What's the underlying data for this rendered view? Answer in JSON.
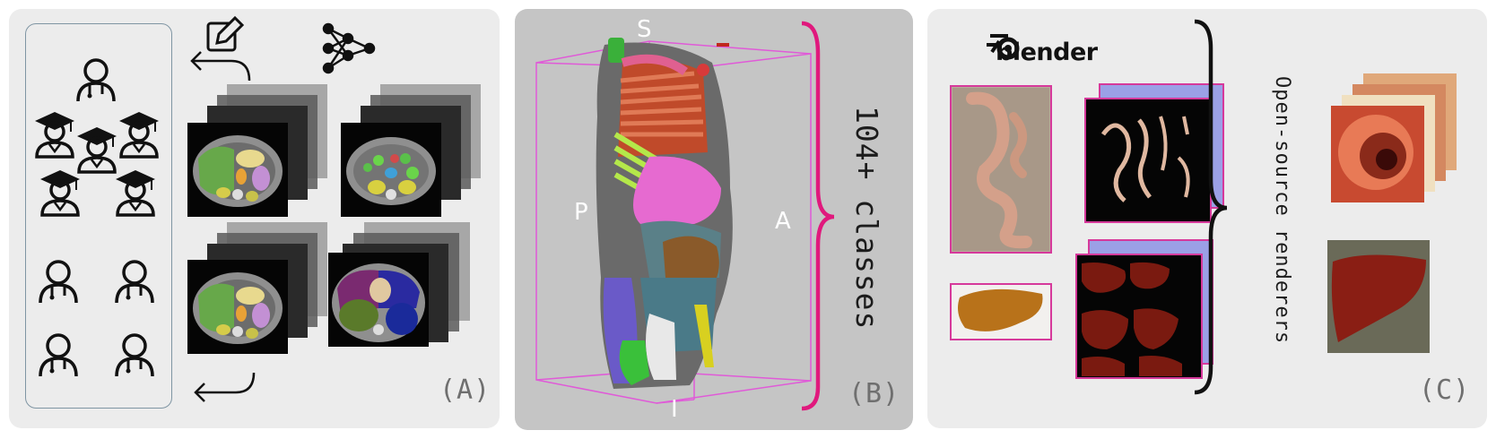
{
  "panel_a": {
    "label": "(A)"
  },
  "panel_b": {
    "label": "(B)",
    "axes": {
      "superior": "S",
      "inferior": "I",
      "posterior": "P",
      "anterior": "A"
    },
    "classes_text": "104+ classes"
  },
  "panel_c": {
    "label": "(C)",
    "renderer_brand": "blender",
    "renderers_text": "Open-source renderers"
  },
  "colors": {
    "panel_bg": "#ececec",
    "panel_b_bg": "#c5c5c5",
    "accent_magenta": "#e0197d",
    "bbox_magenta": "#e05ad8",
    "render_border": "#d6399b",
    "mask_bg": "#9ba0e6"
  },
  "icons": [
    "annotator-icon",
    "graduate-icon",
    "edit-icon",
    "neural-network-icon",
    "return-arrow-icon",
    "blender-logo-icon"
  ]
}
